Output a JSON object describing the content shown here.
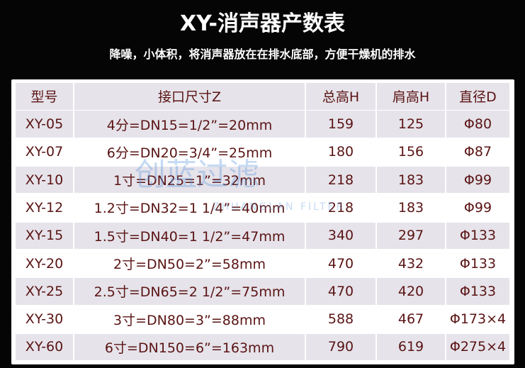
{
  "header": {
    "title": "XY-消声器产数表",
    "subtitle": "降噪，小体积，将消声器放在在排水底部，方便干燥机的排水"
  },
  "table": {
    "columns": [
      "型号",
      "接口尺寸Z",
      "总高H",
      "肩高H",
      "直径D"
    ],
    "rows": [
      [
        "XY-05",
        "4分=DN15=1/2”=20mm",
        "159",
        "125",
        "Φ80"
      ],
      [
        "XY-07",
        "6分=DN20=3/4”=25mm",
        "180",
        "156",
        "Φ87"
      ],
      [
        "XY-10",
        "1寸=DN25=1”=32mm",
        "218",
        "183",
        "Φ99"
      ],
      [
        "XY-12",
        "1.2寸=DN32=1 1/4”=40mm",
        "218",
        "183",
        "Φ99"
      ],
      [
        "XY-15",
        "1.5寸=DN40=1 1/2”=47mm",
        "340",
        "297",
        "Φ133"
      ],
      [
        "XY-20",
        "2寸=DN50=2”=58mm",
        "470",
        "432",
        "Φ133"
      ],
      [
        "XY-25",
        "2.5寸=DN65=2 1/2”=75mm",
        "470",
        "420",
        "Φ133"
      ],
      [
        "XY-30",
        "3寸=DN80=3”=88mm",
        "588",
        "467",
        "Φ173×4"
      ],
      [
        "XY-60",
        "6寸=DN150=6”=163mm",
        "790",
        "619",
        "Φ275×4"
      ]
    ]
  },
  "watermark": {
    "name": "创蓝过滤",
    "latin": "ZHUANGLAN FILTER"
  }
}
